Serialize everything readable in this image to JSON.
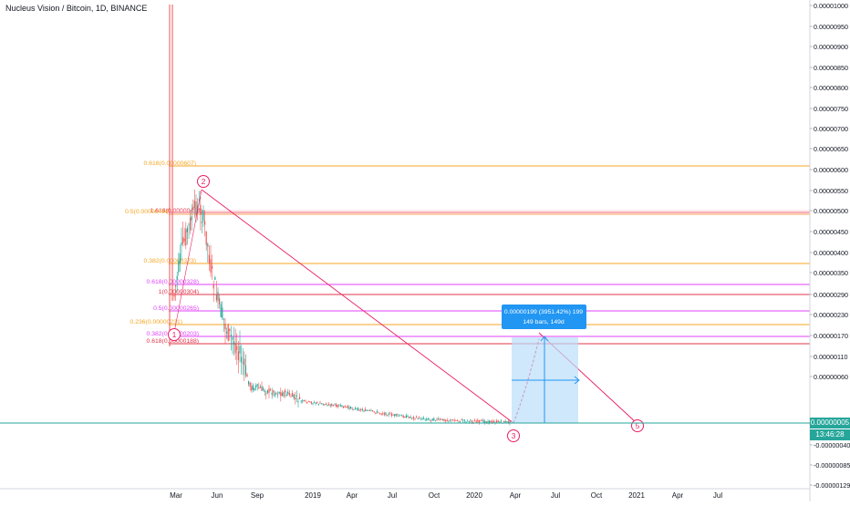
{
  "chart_data": {
    "type": "candlestick",
    "title": "Nucleus Vision / Bitcoin, 1D, BINANCE",
    "x_ticks": [
      "Mar",
      "Jun",
      "Sep",
      "2019",
      "Apr",
      "Jul",
      "Oct",
      "2020",
      "Apr",
      "Jul",
      "Oct",
      "2021",
      "Apr",
      "Jul"
    ],
    "y_ticks": [
      "0.00001000",
      "0.00000950",
      "0.00000900",
      "0.00000850",
      "0.00000800",
      "0.00000750",
      "0.00000700",
      "0.00000650",
      "0.00000600",
      "0.00000550",
      "0.00000500",
      "0.00000450",
      "0.00000400",
      "0.00000350",
      "0.00000290",
      "0.00000230",
      "0.00000170",
      "0.00000110",
      "0.00000060",
      "-0.00000040",
      "-0.00000085",
      "-0.00000129"
    ],
    "current_price": "0.00000005",
    "countdown": "13:46:28",
    "fib_levels": [
      {
        "label": "0.618(0.00000607)",
        "color": "#f5a623"
      },
      {
        "label": "1.618(0.00000494)",
        "color": "#e0344a"
      },
      {
        "label": "0.5(0.00000494)",
        "color": "#f5a623"
      },
      {
        "label": "0.382(0.00000373)",
        "color": "#f5a623"
      },
      {
        "label": "0.618(0.00000328)",
        "color": "#e040fb"
      },
      {
        "label": "1(0.00000304)",
        "color": "#e0344a"
      },
      {
        "label": "0.5(0.00000265)",
        "color": "#e040fb"
      },
      {
        "label": "0.236(0.00000231)",
        "color": "#f5a623"
      },
      {
        "label": "0.382(0.00000203)",
        "color": "#e040fb"
      },
      {
        "label": "0.618(0.00000188)",
        "color": "#e0344a"
      }
    ],
    "wave_labels": [
      "1",
      "2",
      "3",
      "5"
    ],
    "measure_box": {
      "line1": "0.00000199 (3951.42%) 199",
      "line2": "149 bars, 149d"
    },
    "colors": {
      "up": "#26a69a",
      "down": "#ef5350",
      "wave": "#e91e63",
      "measure_fill": "#bbdefb",
      "measure_label": "#2196f3",
      "price_line": "#26a69a"
    }
  }
}
